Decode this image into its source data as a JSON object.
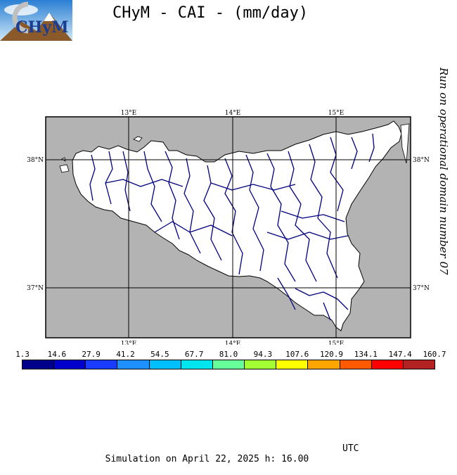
{
  "title": "CHyM - CAI - (mm/day)",
  "side_note": "Run on operational domain number 07",
  "footer": {
    "simulation": "Simulation on April 22, 2025 h: 16.00",
    "tz": "UTC"
  },
  "logo": {
    "text": "CHyM",
    "icon": "chym-logo-icon"
  },
  "map": {
    "lon_labels": [
      "13°E",
      "14°E",
      "15°E"
    ],
    "lat_labels": [
      "38°N",
      "37°N"
    ],
    "land_color": "#ffffff",
    "sea_color": "#b3b3b3",
    "river_color": "#00007f"
  },
  "colorbar": {
    "labels": [
      "1.3",
      "14.6",
      "27.9",
      "41.2",
      "54.5",
      "67.7",
      "81.0",
      "94.3",
      "107.6",
      "120.9",
      "134.1",
      "147.4",
      "160.7"
    ],
    "colors": [
      "#00008b",
      "#0000cd",
      "#1a3cff",
      "#1e90ff",
      "#00bfff",
      "#00e5ee",
      "#66ff99",
      "#a3ff33",
      "#ffff00",
      "#ffa500",
      "#ff5a00",
      "#ff0000",
      "#b22222"
    ]
  }
}
